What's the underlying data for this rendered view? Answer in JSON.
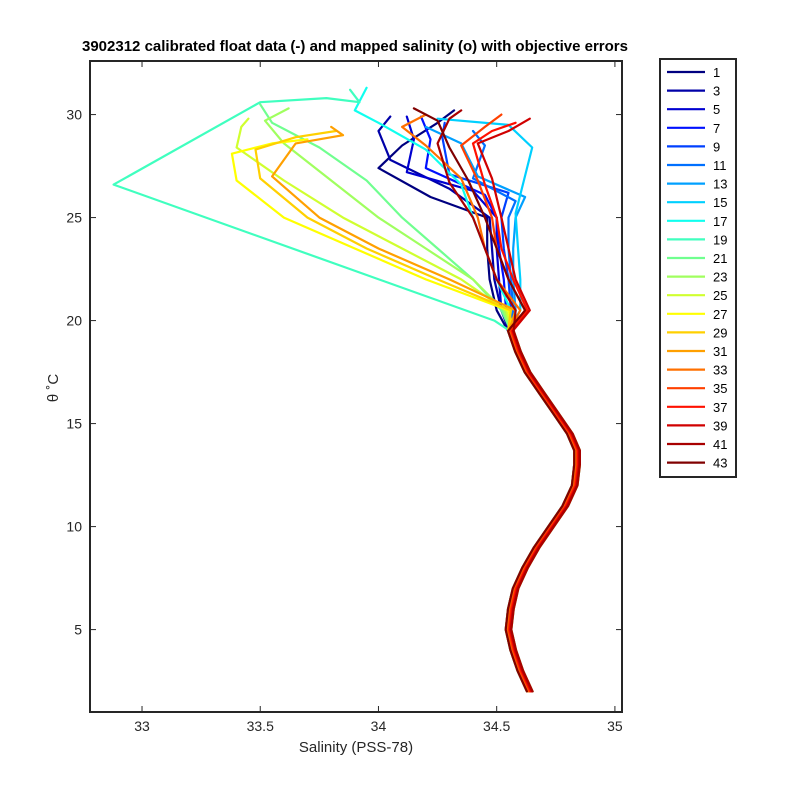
{
  "chart_data": {
    "type": "line",
    "title": "3902312 calibrated float data (-) and mapped salinity (o) with objective errors",
    "xlabel": "Salinity (PSS-78)",
    "ylabel": "θ ˚C",
    "xlim": [
      32.78,
      35.03
    ],
    "ylim": [
      1.0,
      32.6
    ],
    "xticks": [
      "33",
      "33.5",
      "34",
      "34.5",
      "35"
    ],
    "yticks": [
      "5",
      "10",
      "15",
      "20",
      "25",
      "30"
    ],
    "grid": false,
    "legend_position": "outside-top-right",
    "deep_profile": [
      [
        34.64,
        2.0
      ],
      [
        34.6,
        3.0
      ],
      [
        34.57,
        4.0
      ],
      [
        34.55,
        5.0
      ],
      [
        34.56,
        6.0
      ],
      [
        34.58,
        7.0
      ],
      [
        34.62,
        8.0
      ],
      [
        34.67,
        9.0
      ],
      [
        34.73,
        10.0
      ],
      [
        34.79,
        11.0
      ],
      [
        34.83,
        12.0
      ],
      [
        34.84,
        13.0
      ],
      [
        34.84,
        13.7
      ],
      [
        34.81,
        14.5
      ],
      [
        34.75,
        15.5
      ],
      [
        34.69,
        16.5
      ],
      [
        34.63,
        17.5
      ],
      [
        34.59,
        18.5
      ],
      [
        34.56,
        19.5
      ]
    ],
    "series": [
      {
        "name": "1",
        "color": "#000080",
        "values": [
          [
            34.5,
            20.5
          ],
          [
            34.47,
            22
          ],
          [
            34.46,
            23.5
          ],
          [
            34.46,
            25
          ],
          [
            34.22,
            26
          ],
          [
            34.0,
            27.4
          ],
          [
            34.1,
            28.5
          ],
          [
            34.25,
            29.6
          ],
          [
            34.32,
            30.2
          ]
        ]
      },
      {
        "name": "3",
        "color": "#0000a8",
        "values": [
          [
            34.52,
            20.5
          ],
          [
            34.49,
            22
          ],
          [
            34.48,
            23.5
          ],
          [
            34.47,
            25
          ],
          [
            34.3,
            26.4
          ],
          [
            34.05,
            27.8
          ],
          [
            34.0,
            29.2
          ],
          [
            34.05,
            29.9
          ]
        ]
      },
      {
        "name": "5",
        "color": "#0000d0",
        "values": [
          [
            34.52,
            20.5
          ],
          [
            34.51,
            22
          ],
          [
            34.5,
            23.5
          ],
          [
            34.5,
            25
          ],
          [
            34.4,
            26.3
          ],
          [
            34.12,
            27.2
          ],
          [
            34.15,
            28.8
          ],
          [
            34.12,
            29.9
          ]
        ]
      },
      {
        "name": "7",
        "color": "#0010ff",
        "values": [
          [
            34.54,
            20.5
          ],
          [
            34.53,
            22
          ],
          [
            34.51,
            23.5
          ],
          [
            34.5,
            25
          ],
          [
            34.45,
            26.1
          ],
          [
            34.2,
            27.4
          ],
          [
            34.22,
            28.8
          ],
          [
            34.18,
            29.9
          ]
        ]
      },
      {
        "name": "9",
        "color": "#0040ff",
        "values": [
          [
            34.56,
            20.5
          ],
          [
            34.55,
            22
          ],
          [
            34.53,
            23.5
          ],
          [
            34.52,
            25
          ],
          [
            34.55,
            26.2
          ],
          [
            34.3,
            27.1
          ],
          [
            34.27,
            28.9
          ],
          [
            34.28,
            29.6
          ]
        ]
      },
      {
        "name": "11",
        "color": "#0070ff",
        "values": [
          [
            34.57,
            20.5
          ],
          [
            34.56,
            22
          ],
          [
            34.55,
            23.5
          ],
          [
            34.55,
            25
          ],
          [
            34.58,
            25.8
          ],
          [
            34.4,
            26.9
          ],
          [
            34.45,
            28.5
          ],
          [
            34.4,
            29.2
          ]
        ]
      },
      {
        "name": "13",
        "color": "#00a0ff",
        "values": [
          [
            34.58,
            20.5
          ],
          [
            34.57,
            22
          ],
          [
            34.57,
            23.5
          ],
          [
            34.58,
            25
          ],
          [
            34.62,
            26.0
          ],
          [
            34.42,
            27.0
          ],
          [
            34.35,
            28.6
          ],
          [
            34.2,
            29.4
          ]
        ]
      },
      {
        "name": "15",
        "color": "#00d0ff",
        "values": [
          [
            34.6,
            20.5
          ],
          [
            34.6,
            22
          ],
          [
            34.59,
            23.5
          ],
          [
            34.58,
            25.2
          ],
          [
            34.65,
            28.4
          ],
          [
            34.55,
            29.5
          ],
          [
            34.25,
            29.8
          ]
        ]
      },
      {
        "name": "17",
        "color": "#10ffef",
        "values": [
          [
            34.56,
            20.5
          ],
          [
            34.5,
            22
          ],
          [
            34.45,
            23.5
          ],
          [
            34.4,
            25.0
          ],
          [
            34.35,
            26.6
          ],
          [
            34.2,
            28.3
          ],
          [
            34.0,
            29.6
          ],
          [
            33.9,
            30.2
          ],
          [
            33.95,
            31.3
          ]
        ]
      },
      {
        "name": "19",
        "color": "#40ffbf",
        "values": [
          [
            34.49,
            20.0
          ],
          [
            32.88,
            26.6
          ],
          [
            33.5,
            30.6
          ],
          [
            33.78,
            30.8
          ],
          [
            33.92,
            30.6
          ],
          [
            33.88,
            31.2
          ]
        ]
      },
      {
        "name": "21",
        "color": "#70ff8f",
        "values": [
          [
            34.52,
            20.5
          ],
          [
            34.4,
            22
          ],
          [
            34.25,
            23.5
          ],
          [
            34.1,
            25.0
          ],
          [
            33.95,
            26.8
          ],
          [
            33.75,
            28.4
          ],
          [
            33.55,
            29.6
          ],
          [
            33.5,
            30.5
          ]
        ]
      },
      {
        "name": "23",
        "color": "#a0ff5f",
        "values": [
          [
            34.53,
            20.5
          ],
          [
            34.4,
            22
          ],
          [
            34.2,
            23.5
          ],
          [
            34.0,
            25.0
          ],
          [
            33.8,
            26.8
          ],
          [
            33.6,
            28.6
          ],
          [
            33.52,
            29.7
          ],
          [
            33.62,
            30.3
          ]
        ]
      },
      {
        "name": "25",
        "color": "#d0ff2f",
        "values": [
          [
            34.54,
            20.5
          ],
          [
            34.35,
            22
          ],
          [
            34.1,
            23.5
          ],
          [
            33.85,
            25.0
          ],
          [
            33.6,
            26.8
          ],
          [
            33.4,
            28.4
          ],
          [
            33.42,
            29.4
          ],
          [
            33.45,
            29.8
          ]
        ]
      },
      {
        "name": "27",
        "color": "#ffff00",
        "values": [
          [
            34.55,
            20.5
          ],
          [
            34.2,
            22
          ],
          [
            33.9,
            23.5
          ],
          [
            33.6,
            25.0
          ],
          [
            33.4,
            26.8
          ],
          [
            33.38,
            28.1
          ],
          [
            33.55,
            28.6
          ],
          [
            33.7,
            28.8
          ]
        ]
      },
      {
        "name": "29",
        "color": "#ffd000",
        "values": [
          [
            34.56,
            20.5
          ],
          [
            34.25,
            22
          ],
          [
            33.95,
            23.5
          ],
          [
            33.7,
            25.0
          ],
          [
            33.5,
            26.9
          ],
          [
            33.48,
            28.3
          ],
          [
            33.65,
            28.9
          ],
          [
            33.82,
            29.2
          ]
        ]
      },
      {
        "name": "31",
        "color": "#ffa000",
        "values": [
          [
            34.58,
            20.5
          ],
          [
            34.3,
            22
          ],
          [
            34.0,
            23.5
          ],
          [
            33.75,
            25.0
          ],
          [
            33.55,
            27.0
          ],
          [
            33.65,
            28.6
          ],
          [
            33.85,
            29.0
          ],
          [
            33.8,
            29.4
          ]
        ]
      },
      {
        "name": "33",
        "color": "#ff7000",
        "values": [
          [
            34.6,
            20.5
          ],
          [
            34.5,
            22
          ],
          [
            34.45,
            23.5
          ],
          [
            34.42,
            25.0
          ],
          [
            34.35,
            26.9
          ],
          [
            34.2,
            28.5
          ],
          [
            34.1,
            29.4
          ],
          [
            34.2,
            30.0
          ]
        ]
      },
      {
        "name": "35",
        "color": "#ff4000",
        "values": [
          [
            34.62,
            20.5
          ],
          [
            34.55,
            22
          ],
          [
            34.5,
            23.5
          ],
          [
            34.48,
            25.0
          ],
          [
            34.42,
            26.8
          ],
          [
            34.35,
            28.5
          ],
          [
            34.45,
            29.4
          ],
          [
            34.52,
            30.0
          ]
        ]
      },
      {
        "name": "37",
        "color": "#ff1000",
        "values": [
          [
            34.63,
            20.5
          ],
          [
            34.57,
            22
          ],
          [
            34.52,
            23.5
          ],
          [
            34.5,
            25.0
          ],
          [
            34.45,
            26.6
          ],
          [
            34.4,
            28.6
          ],
          [
            34.48,
            29.2
          ],
          [
            34.58,
            29.6
          ]
        ]
      },
      {
        "name": "39",
        "color": "#d00000",
        "values": [
          [
            34.64,
            20.5
          ],
          [
            34.58,
            22
          ],
          [
            34.55,
            23.5
          ],
          [
            34.52,
            25.0
          ],
          [
            34.48,
            26.9
          ],
          [
            34.42,
            28.6
          ],
          [
            34.55,
            29.2
          ],
          [
            34.64,
            29.8
          ]
        ]
      },
      {
        "name": "41",
        "color": "#a80000",
        "values": [
          [
            34.58,
            20.5
          ],
          [
            34.5,
            22
          ],
          [
            34.45,
            23.5
          ],
          [
            34.4,
            25.0
          ],
          [
            34.3,
            26.7
          ],
          [
            34.25,
            28.6
          ],
          [
            34.3,
            29.8
          ],
          [
            34.35,
            30.2
          ]
        ]
      },
      {
        "name": "43",
        "color": "#800000",
        "values": [
          [
            34.62,
            20.5
          ],
          [
            34.55,
            22
          ],
          [
            34.5,
            23.5
          ],
          [
            34.45,
            25.0
          ],
          [
            34.38,
            26.8
          ],
          [
            34.3,
            28.4
          ],
          [
            34.25,
            29.7
          ],
          [
            34.15,
            30.3
          ]
        ]
      }
    ]
  }
}
